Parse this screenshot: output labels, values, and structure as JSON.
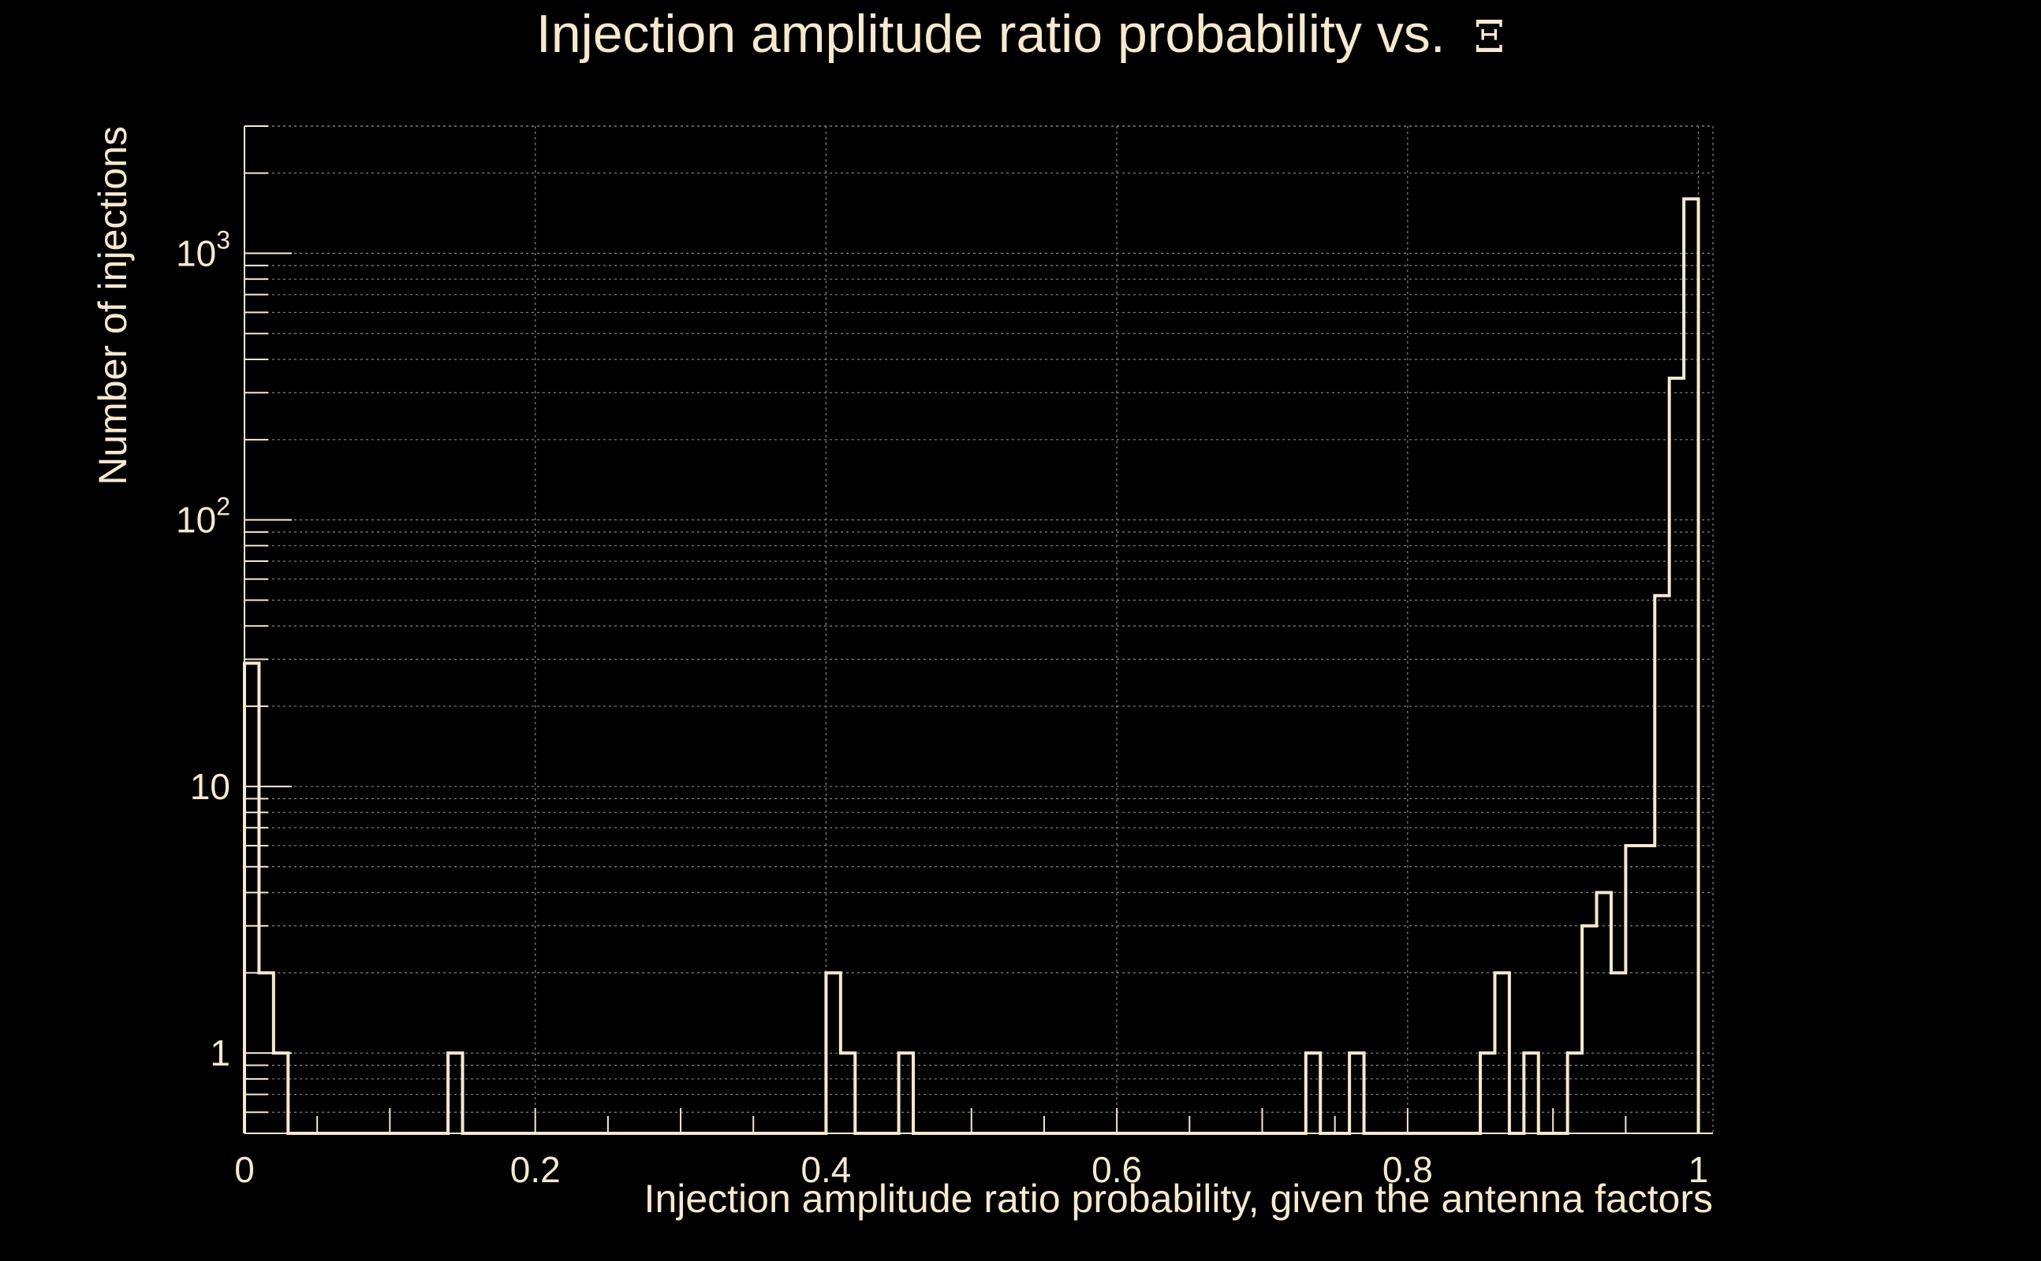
{
  "chart_data": {
    "type": "bar",
    "title": "Injection amplitude ratio probability vs.",
    "title_symbol": "Ξ",
    "xlabel": "Injection amplitude ratio probability, given the antenna factors",
    "ylabel": "Number of injections",
    "xlim": [
      0,
      1.01
    ],
    "ylim": [
      0.5,
      3000
    ],
    "y_scale": "log",
    "grid": true,
    "x_ticks": [
      {
        "value": 0,
        "label": "0"
      },
      {
        "value": 0.2,
        "label": "0.2"
      },
      {
        "value": 0.4,
        "label": "0.4"
      },
      {
        "value": 0.6,
        "label": "0.6"
      },
      {
        "value": 0.8,
        "label": "0.8"
      },
      {
        "value": 1.0,
        "label": "1"
      }
    ],
    "y_ticks": [
      {
        "value": 1,
        "base": "1",
        "exp": ""
      },
      {
        "value": 10,
        "base": "10",
        "exp": ""
      },
      {
        "value": 100,
        "base": "10",
        "exp": "2"
      },
      {
        "value": 1000,
        "base": "10",
        "exp": "3"
      }
    ],
    "bin_width": 0.01,
    "bins": [
      {
        "x": 0.0,
        "count": 29
      },
      {
        "x": 0.01,
        "count": 2
      },
      {
        "x": 0.02,
        "count": 1
      },
      {
        "x": 0.14,
        "count": 1
      },
      {
        "x": 0.4,
        "count": 2
      },
      {
        "x": 0.41,
        "count": 1
      },
      {
        "x": 0.45,
        "count": 1
      },
      {
        "x": 0.73,
        "count": 1
      },
      {
        "x": 0.76,
        "count": 1
      },
      {
        "x": 0.85,
        "count": 1
      },
      {
        "x": 0.86,
        "count": 2
      },
      {
        "x": 0.88,
        "count": 1
      },
      {
        "x": 0.91,
        "count": 1
      },
      {
        "x": 0.92,
        "count": 3
      },
      {
        "x": 0.93,
        "count": 4
      },
      {
        "x": 0.94,
        "count": 2
      },
      {
        "x": 0.95,
        "count": 6
      },
      {
        "x": 0.96,
        "count": 6
      },
      {
        "x": 0.97,
        "count": 52
      },
      {
        "x": 0.98,
        "count": 340
      },
      {
        "x": 0.99,
        "count": 1600
      }
    ],
    "colors": {
      "background": "#000000",
      "foreground": "#f5e9cf",
      "grid": "#8a8578"
    }
  }
}
